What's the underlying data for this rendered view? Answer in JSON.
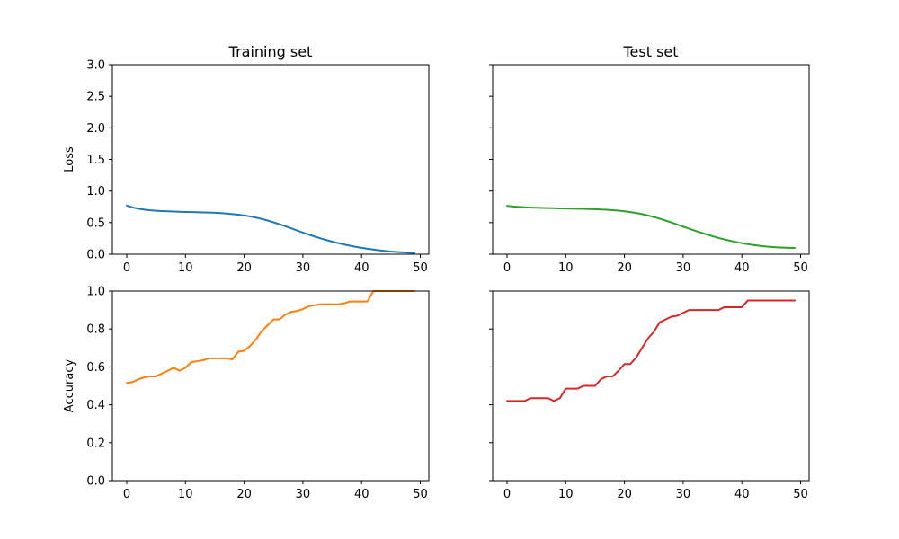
{
  "chart_data": [
    {
      "type": "line",
      "title": "Training set",
      "xlabel": "",
      "ylabel": "Loss",
      "xlim": [
        -2.45,
        51.45
      ],
      "ylim": [
        0,
        3
      ],
      "xticks": [
        0,
        10,
        20,
        30,
        40,
        50
      ],
      "xtick_labels": [
        "0",
        "10",
        "20",
        "30",
        "40",
        "50"
      ],
      "yticks": [
        0,
        0.5,
        1,
        1.5,
        2,
        2.5,
        3
      ],
      "ytick_labels": [
        "0.0",
        "0.5",
        "1.0",
        "1.5",
        "2.0",
        "2.5",
        "3.0"
      ],
      "show_ytick_labels": true,
      "grid": false,
      "series": [
        {
          "color": "#1f77b4",
          "x": [
            0,
            1,
            2,
            3,
            4,
            5,
            6,
            7,
            8,
            9,
            10,
            11,
            12,
            13,
            14,
            15,
            16,
            17,
            18,
            19,
            20,
            21,
            22,
            23,
            24,
            25,
            26,
            27,
            28,
            29,
            30,
            31,
            32,
            33,
            34,
            35,
            36,
            37,
            38,
            39,
            40,
            41,
            42,
            43,
            44,
            45,
            46,
            47,
            48,
            49
          ],
          "y": [
            0.77,
            0.74,
            0.72,
            0.705,
            0.695,
            0.688,
            0.682,
            0.678,
            0.675,
            0.672,
            0.669,
            0.667,
            0.665,
            0.662,
            0.659,
            0.655,
            0.65,
            0.643,
            0.635,
            0.625,
            0.613,
            0.598,
            0.58,
            0.558,
            0.533,
            0.505,
            0.475,
            0.443,
            0.41,
            0.376,
            0.343,
            0.311,
            0.28,
            0.251,
            0.224,
            0.199,
            0.176,
            0.155,
            0.135,
            0.117,
            0.101,
            0.087,
            0.074,
            0.062,
            0.052,
            0.043,
            0.036,
            0.03,
            0.025,
            0.02
          ]
        }
      ]
    },
    {
      "type": "line",
      "title": "Test set",
      "xlabel": "",
      "ylabel": "",
      "xlim": [
        -2.45,
        51.45
      ],
      "ylim": [
        0,
        3
      ],
      "xticks": [
        0,
        10,
        20,
        30,
        40,
        50
      ],
      "xtick_labels": [
        "0",
        "10",
        "20",
        "30",
        "40",
        "50"
      ],
      "yticks": [
        0,
        0.5,
        1,
        1.5,
        2,
        2.5,
        3
      ],
      "ytick_labels": [],
      "show_ytick_labels": false,
      "grid": false,
      "series": [
        {
          "color": "#2ca02c",
          "x": [
            0,
            1,
            2,
            3,
            4,
            5,
            6,
            7,
            8,
            9,
            10,
            11,
            12,
            13,
            14,
            15,
            16,
            17,
            18,
            19,
            20,
            21,
            22,
            23,
            24,
            25,
            26,
            27,
            28,
            29,
            30,
            31,
            32,
            33,
            34,
            35,
            36,
            37,
            38,
            39,
            40,
            41,
            42,
            43,
            44,
            45,
            46,
            47,
            48,
            49
          ],
          "y": [
            0.765,
            0.755,
            0.748,
            0.742,
            0.738,
            0.735,
            0.732,
            0.73,
            0.728,
            0.726,
            0.724,
            0.722,
            0.72,
            0.718,
            0.715,
            0.712,
            0.708,
            0.703,
            0.697,
            0.689,
            0.679,
            0.667,
            0.652,
            0.634,
            0.613,
            0.589,
            0.562,
            0.533,
            0.502,
            0.47,
            0.437,
            0.405,
            0.373,
            0.342,
            0.313,
            0.285,
            0.259,
            0.235,
            0.213,
            0.193,
            0.175,
            0.159,
            0.145,
            0.133,
            0.123,
            0.115,
            0.109,
            0.105,
            0.102,
            0.1
          ]
        }
      ]
    },
    {
      "type": "line",
      "title": "",
      "xlabel": "",
      "ylabel": "Accuracy",
      "xlim": [
        -2.45,
        51.45
      ],
      "ylim": [
        0,
        1
      ],
      "xticks": [
        0,
        10,
        20,
        30,
        40,
        50
      ],
      "xtick_labels": [
        "0",
        "10",
        "20",
        "30",
        "40",
        "50"
      ],
      "yticks": [
        0,
        0.2,
        0.4,
        0.6,
        0.8,
        1
      ],
      "ytick_labels": [
        "0.0",
        "0.2",
        "0.4",
        "0.6",
        "0.8",
        "1.0"
      ],
      "show_ytick_labels": true,
      "grid": false,
      "series": [
        {
          "color": "#ff7f0e",
          "x": [
            0,
            1,
            2,
            3,
            4,
            5,
            6,
            7,
            8,
            9,
            10,
            11,
            12,
            13,
            14,
            15,
            16,
            17,
            18,
            19,
            20,
            21,
            22,
            23,
            24,
            25,
            26,
            27,
            28,
            29,
            30,
            31,
            32,
            33,
            34,
            35,
            36,
            37,
            38,
            39,
            40,
            41,
            42,
            43,
            44,
            45,
            46,
            47,
            48,
            49
          ],
          "y": [
            0.515,
            0.52,
            0.535,
            0.545,
            0.55,
            0.55,
            0.565,
            0.58,
            0.595,
            0.58,
            0.595,
            0.625,
            0.63,
            0.635,
            0.645,
            0.645,
            0.645,
            0.645,
            0.64,
            0.68,
            0.685,
            0.71,
            0.745,
            0.79,
            0.82,
            0.85,
            0.85,
            0.875,
            0.89,
            0.895,
            0.905,
            0.92,
            0.925,
            0.93,
            0.93,
            0.93,
            0.93,
            0.935,
            0.945,
            0.945,
            0.945,
            0.945,
            1.0,
            1.0,
            1.0,
            1.0,
            1.0,
            1.0,
            1.0,
            1.0
          ]
        }
      ]
    },
    {
      "type": "line",
      "title": "",
      "xlabel": "",
      "ylabel": "",
      "xlim": [
        -2.45,
        51.45
      ],
      "ylim": [
        0,
        1
      ],
      "xticks": [
        0,
        10,
        20,
        30,
        40,
        50
      ],
      "xtick_labels": [
        "0",
        "10",
        "20",
        "30",
        "40",
        "50"
      ],
      "yticks": [
        0,
        0.2,
        0.4,
        0.6,
        0.8,
        1
      ],
      "ytick_labels": [],
      "show_ytick_labels": false,
      "grid": false,
      "series": [
        {
          "color": "#d62728",
          "x": [
            0,
            1,
            2,
            3,
            4,
            5,
            6,
            7,
            8,
            9,
            10,
            11,
            12,
            13,
            14,
            15,
            16,
            17,
            18,
            19,
            20,
            21,
            22,
            23,
            24,
            25,
            26,
            27,
            28,
            29,
            30,
            31,
            32,
            33,
            34,
            35,
            36,
            37,
            38,
            39,
            40,
            41,
            42,
            43,
            44,
            45,
            46,
            47,
            48,
            49
          ],
          "y": [
            0.42,
            0.42,
            0.42,
            0.42,
            0.435,
            0.435,
            0.435,
            0.435,
            0.42,
            0.435,
            0.485,
            0.485,
            0.485,
            0.5,
            0.5,
            0.5,
            0.535,
            0.55,
            0.55,
            0.58,
            0.615,
            0.615,
            0.65,
            0.7,
            0.75,
            0.785,
            0.835,
            0.85,
            0.865,
            0.87,
            0.885,
            0.9,
            0.9,
            0.9,
            0.9,
            0.9,
            0.9,
            0.915,
            0.915,
            0.915,
            0.915,
            0.95,
            0.95,
            0.95,
            0.95,
            0.95,
            0.95,
            0.95,
            0.95,
            0.95
          ]
        }
      ]
    }
  ]
}
